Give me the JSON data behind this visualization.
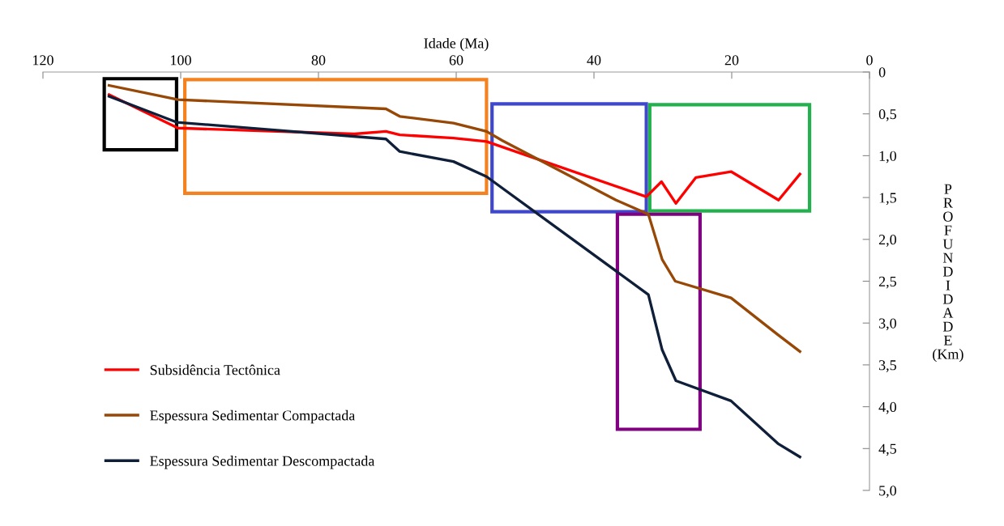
{
  "chart_data": {
    "type": "line",
    "xlabel": "Idade (Ma)",
    "ylabel": "PROFUNDIDADE (Km)",
    "xlim": [
      120,
      0
    ],
    "xticks": [
      120,
      100,
      80,
      60,
      40,
      20,
      0
    ],
    "ylim": [
      5,
      0
    ],
    "yticks": [
      0,
      {
        "value": 0.5,
        "label": "0,5"
      },
      {
        "value": 1.0,
        "label": "1,0"
      },
      {
        "value": 1.5,
        "label": "1,5"
      },
      {
        "value": 2.0,
        "label": "2,0"
      },
      {
        "value": 2.5,
        "label": "2,5"
      },
      {
        "value": 3.0,
        "label": "3,0"
      },
      {
        "value": 3.5,
        "label": "3,5"
      },
      {
        "value": 4.0,
        "label": "4,0"
      },
      {
        "value": 4.5,
        "label": "4,5"
      },
      {
        "value": 5.0,
        "label": "5,0"
      }
    ],
    "grid": false,
    "legend": "bottom left",
    "marker": "none",
    "line_style": "solid",
    "series": [
      {
        "name": "Subsidência Tectônica",
        "color": "#ff0000",
        "x": [
          110.4,
          100.4,
          74.8,
          70.2,
          68.2,
          60.4,
          55.6,
          32.4,
          30.2,
          28.1,
          25.2,
          20.1,
          13.2,
          10.1
        ],
        "values": [
          0.27,
          0.67,
          0.74,
          0.71,
          0.75,
          0.79,
          0.83,
          1.49,
          1.31,
          1.57,
          1.26,
          1.19,
          1.53,
          1.22
        ]
      },
      {
        "name": "Espessura Sedimentar Compactada",
        "color": "#974806",
        "x": [
          110.4,
          100.4,
          70.2,
          68.2,
          60.4,
          55.6,
          53.3,
          36.8,
          32.1,
          30.1,
          28.2,
          20.1,
          13.3,
          10.1
        ],
        "values": [
          0.16,
          0.33,
          0.44,
          0.53,
          0.61,
          0.71,
          0.82,
          1.53,
          1.7,
          2.24,
          2.5,
          2.7,
          3.14,
          3.34
        ]
      },
      {
        "name": "Espessura Sedimentar Descompactada",
        "color": "#0f1f3a",
        "x": [
          110.4,
          100.6,
          70.2,
          68.2,
          60.4,
          55.6,
          32.1,
          30.1,
          28.1,
          20.1,
          13.3,
          10.1
        ],
        "values": [
          0.29,
          0.6,
          0.8,
          0.95,
          1.07,
          1.25,
          2.66,
          3.32,
          3.69,
          3.93,
          4.44,
          4.6
        ]
      }
    ]
  }
}
